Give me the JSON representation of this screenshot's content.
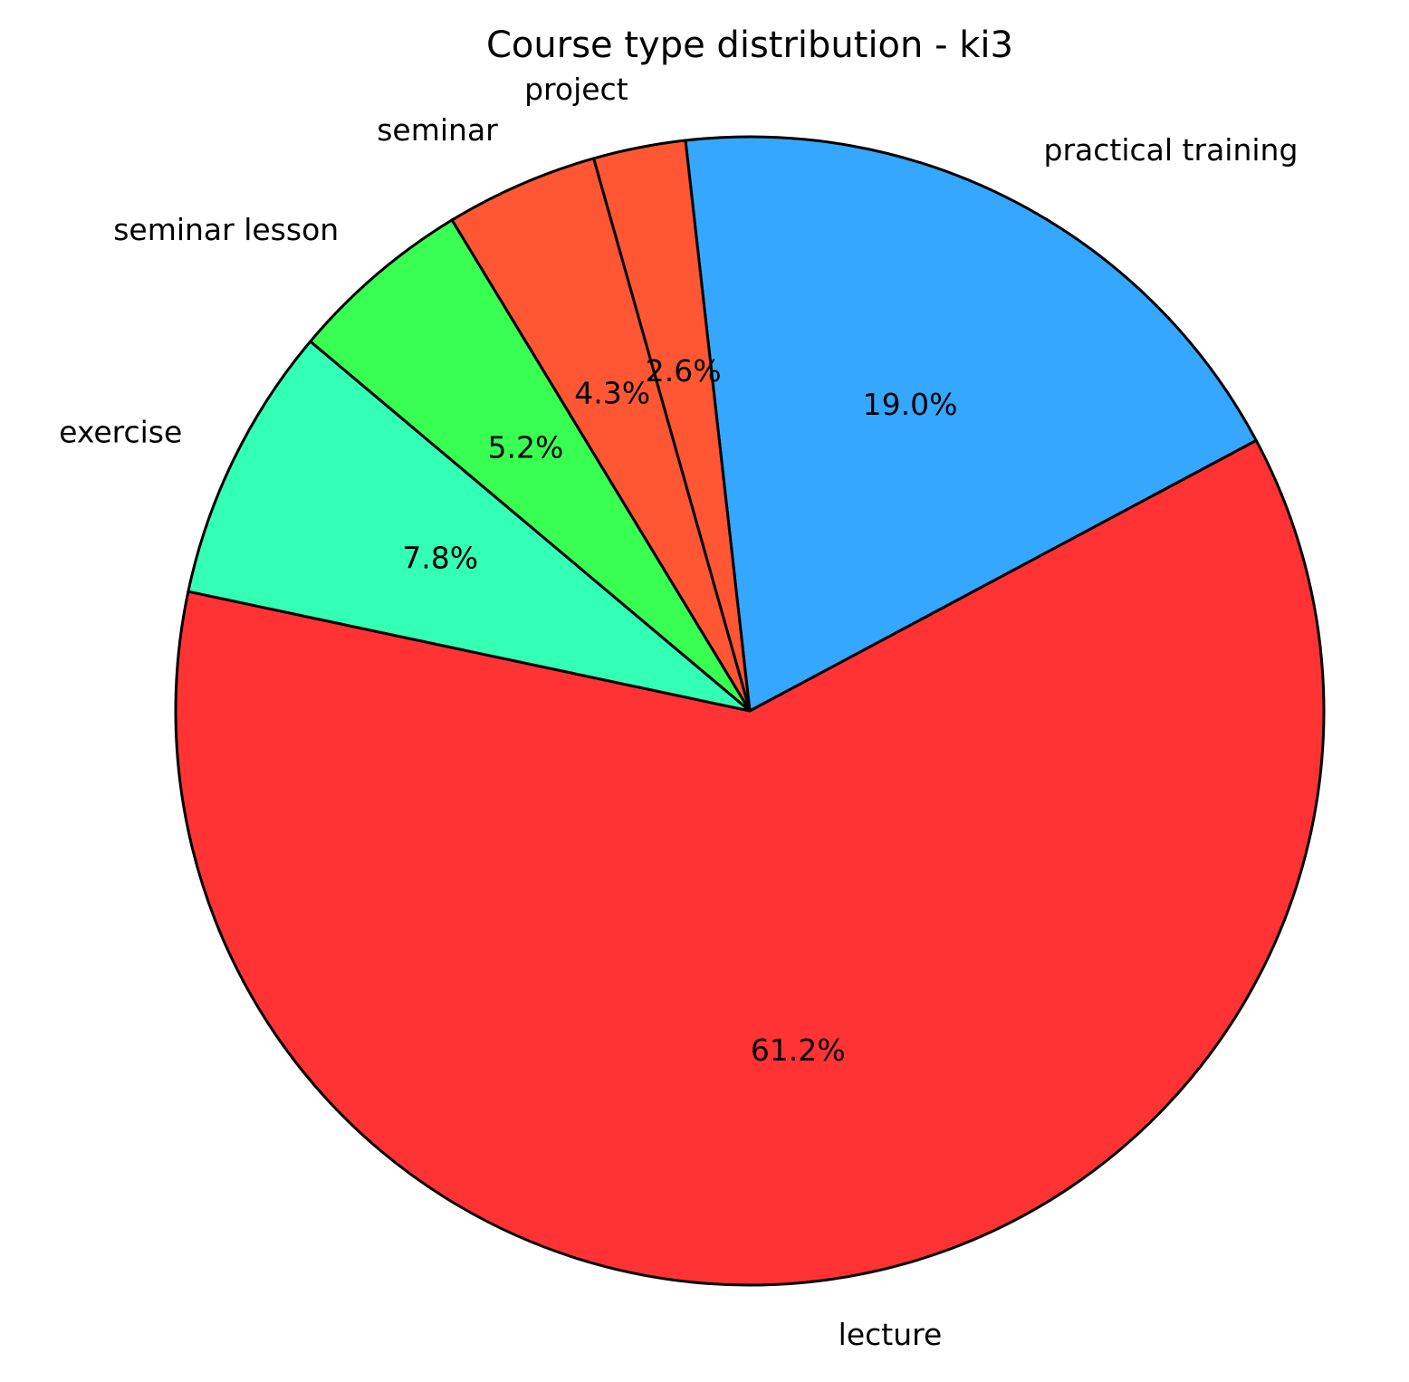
{
  "chart_data": {
    "type": "pie",
    "title": "Course type distribution - ki3",
    "categories": [
      "practical training",
      "project",
      "seminar",
      "seminar lesson",
      "exercise",
      "lecture"
    ],
    "values": [
      19.0,
      2.6,
      4.3,
      5.2,
      7.8,
      61.2
    ],
    "value_labels": [
      "19.0%",
      "2.6%",
      "4.3%",
      "5.2%",
      "7.8%",
      "61.2%"
    ],
    "colors": [
      "#35a7ff",
      "#ff5733",
      "#ff5733",
      "#38ff52",
      "#33ffb5",
      "#ff3333"
    ]
  }
}
